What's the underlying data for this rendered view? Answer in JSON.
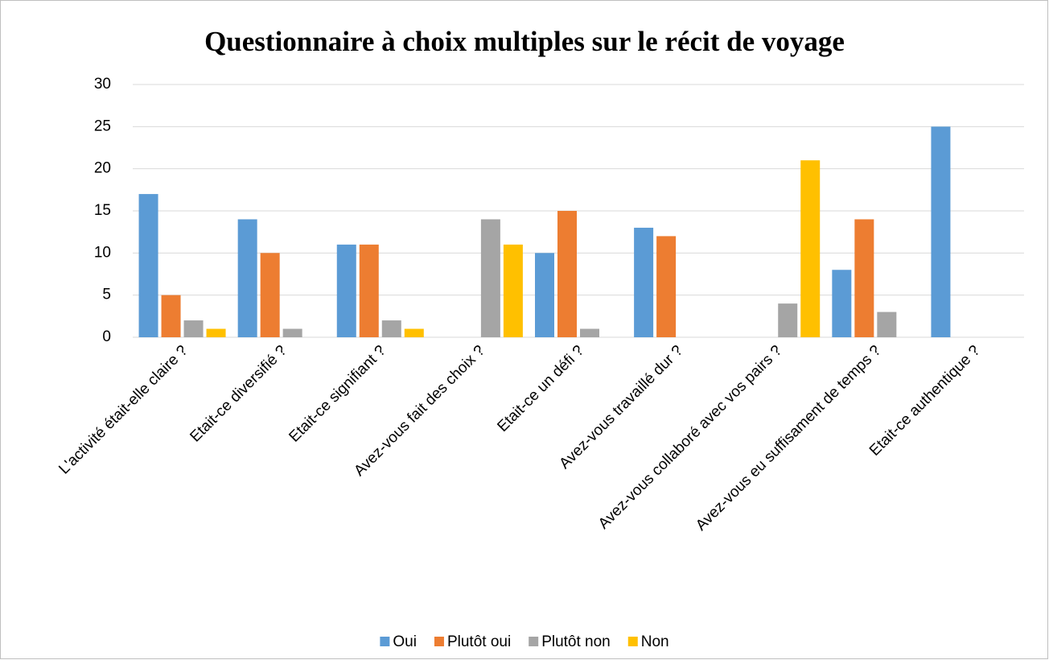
{
  "chart_data": {
    "type": "bar",
    "title": "Questionnaire à choix multiples sur le récit de voyage",
    "categories": [
      "L'activité était-elle claire ?",
      "Etait-ce diversifié ?",
      "Etait-ce signifiant ?",
      "Avez-vous fait des choix ?",
      "Etait-ce un défi ?",
      "Avez-vous travaillé dur ?",
      "Avez-vous collaboré avec vos pairs ?",
      "Avez-vous eu suffisament de temps ?",
      "Etait-ce authentique ?"
    ],
    "series": [
      {
        "name": "Oui",
        "color": "#5b9bd5",
        "values": [
          17,
          14,
          11,
          0,
          10,
          13,
          0,
          8,
          25
        ]
      },
      {
        "name": "Plutôt oui",
        "color": "#ed7d31",
        "values": [
          5,
          10,
          11,
          0,
          15,
          12,
          0,
          14,
          0
        ]
      },
      {
        "name": "Plutôt non",
        "color": "#a5a5a5",
        "values": [
          2,
          1,
          2,
          14,
          1,
          0,
          4,
          3,
          0
        ]
      },
      {
        "name": "Non",
        "color": "#ffc000",
        "values": [
          1,
          0,
          1,
          11,
          0,
          0,
          21,
          0,
          0
        ]
      }
    ],
    "ylim": [
      0,
      30
    ],
    "yticks": [
      0,
      5,
      10,
      15,
      20,
      25,
      30
    ],
    "grid": true,
    "legend": "bottom"
  }
}
